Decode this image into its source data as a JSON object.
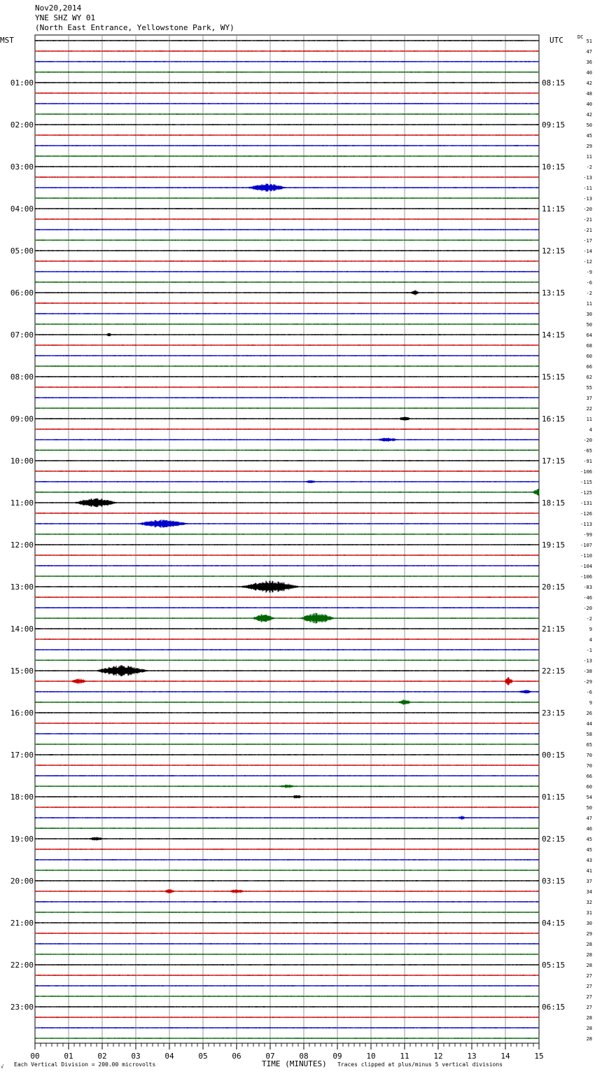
{
  "header": {
    "date": "Nov20,2014",
    "station": "YNE SHZ WY 01",
    "location": "(North East Entrance, Yellowstone Park, WY)"
  },
  "left_tz": "MST",
  "right_tz": "UTC",
  "dc_label": "DC",
  "footer": {
    "scale_note": "Each Vertical Division =  200.00 microvolts",
    "xlabel": "TIME (MINUTES)",
    "clip_note": "Traces clipped at plus/minus 5 vertical divisions",
    "corner_mark": "√"
  },
  "colors": {
    "trace_cycle": [
      "#000000",
      "#cc0000",
      "#0000cc",
      "#006600"
    ],
    "grid": "#808080"
  },
  "chart_data": {
    "type": "line",
    "title": "YNE SHZ WY 01",
    "xlabel": "TIME (MINUTES)",
    "x_ticks": [
      "00",
      "01",
      "02",
      "03",
      "04",
      "05",
      "06",
      "07",
      "08",
      "09",
      "10",
      "11",
      "12",
      "13",
      "14",
      "15"
    ],
    "xlim": [
      0,
      15
    ],
    "left_hour_labels": [
      "01:00",
      "02:00",
      "03:00",
      "04:00",
      "05:00",
      "06:00",
      "07:00",
      "08:00",
      "09:00",
      "10:00",
      "11:00",
      "12:00",
      "13:00",
      "14:00",
      "15:00",
      "16:00",
      "17:00",
      "18:00",
      "19:00",
      "20:00",
      "21:00",
      "22:00",
      "23:00"
    ],
    "right_hour_labels": [
      "08:15",
      "09:15",
      "10:15",
      "11:15",
      "12:15",
      "13:15",
      "14:15",
      "15:15",
      "16:15",
      "17:15",
      "18:15",
      "19:15",
      "20:15",
      "21:15",
      "22:15",
      "23:15",
      "00:15",
      "01:15",
      "02:15",
      "03:15",
      "04:15",
      "05:15",
      "06:15"
    ],
    "dc_offsets": [
      51,
      47,
      36,
      40,
      42,
      48,
      40,
      42,
      50,
      45,
      29,
      11,
      -2,
      -13,
      -11,
      -13,
      -20,
      -21,
      -21,
      -17,
      -14,
      -12,
      -9,
      -6,
      -2,
      11,
      30,
      50,
      64,
      68,
      60,
      66,
      62,
      55,
      37,
      22,
      11,
      4,
      -20,
      -65,
      -91,
      -106,
      -115,
      -125,
      -131,
      -126,
      -113,
      -99,
      -107,
      -110,
      -104,
      -106,
      -83,
      -46,
      -20,
      -2,
      9,
      4,
      -1,
      -13,
      -38,
      -29,
      -6,
      9,
      26,
      44,
      58,
      65,
      70,
      70,
      66,
      60,
      54,
      50,
      47,
      46,
      45,
      45,
      43,
      41,
      37,
      34,
      32,
      31,
      30,
      29,
      28,
      28,
      28,
      27,
      27,
      27,
      27,
      28,
      28,
      28
    ],
    "events": [
      {
        "trace": 14,
        "minute": 6.9,
        "amplitude": 6,
        "duration_min": 1.4
      },
      {
        "trace": 24,
        "minute": 11.3,
        "amplitude": 4,
        "duration_min": 0.3
      },
      {
        "trace": 28,
        "minute": 2.2,
        "amplitude": 3,
        "duration_min": 0.2
      },
      {
        "trace": 36,
        "minute": 11.0,
        "amplitude": 4,
        "duration_min": 0.4
      },
      {
        "trace": 38,
        "minute": 10.5,
        "amplitude": 3,
        "duration_min": 0.8
      },
      {
        "trace": 42,
        "minute": 8.2,
        "amplitude": 3,
        "duration_min": 0.4
      },
      {
        "trace": 43,
        "minute": 15.0,
        "amplitude": 5,
        "duration_min": 0.5
      },
      {
        "trace": 44,
        "minute": 1.8,
        "amplitude": 7,
        "duration_min": 1.5
      },
      {
        "trace": 46,
        "minute": 3.8,
        "amplitude": 6,
        "duration_min": 1.8
      },
      {
        "trace": 52,
        "minute": 7.0,
        "amplitude": 9,
        "duration_min": 2.0
      },
      {
        "trace": 55,
        "minute": 6.8,
        "amplitude": 6,
        "duration_min": 0.8
      },
      {
        "trace": 55,
        "minute": 8.4,
        "amplitude": 8,
        "duration_min": 1.2
      },
      {
        "trace": 60,
        "minute": 2.6,
        "amplitude": 8,
        "duration_min": 1.8
      },
      {
        "trace": 61,
        "minute": 1.3,
        "amplitude": 4,
        "duration_min": 0.6
      },
      {
        "trace": 61,
        "minute": 14.1,
        "amplitude": 6,
        "duration_min": 0.3
      },
      {
        "trace": 62,
        "minute": 14.6,
        "amplitude": 3,
        "duration_min": 0.6
      },
      {
        "trace": 63,
        "minute": 11.0,
        "amplitude": 4,
        "duration_min": 0.5
      },
      {
        "trace": 71,
        "minute": 7.5,
        "amplitude": 3,
        "duration_min": 0.6
      },
      {
        "trace": 72,
        "minute": 7.8,
        "amplitude": 3,
        "duration_min": 0.4
      },
      {
        "trace": 74,
        "minute": 12.7,
        "amplitude": 3,
        "duration_min": 0.3
      },
      {
        "trace": 76,
        "minute": 1.8,
        "amplitude": 3,
        "duration_min": 0.6
      },
      {
        "trace": 81,
        "minute": 4.0,
        "amplitude": 3,
        "duration_min": 0.4
      },
      {
        "trace": 81,
        "minute": 6.0,
        "amplitude": 3,
        "duration_min": 0.6
      }
    ]
  }
}
